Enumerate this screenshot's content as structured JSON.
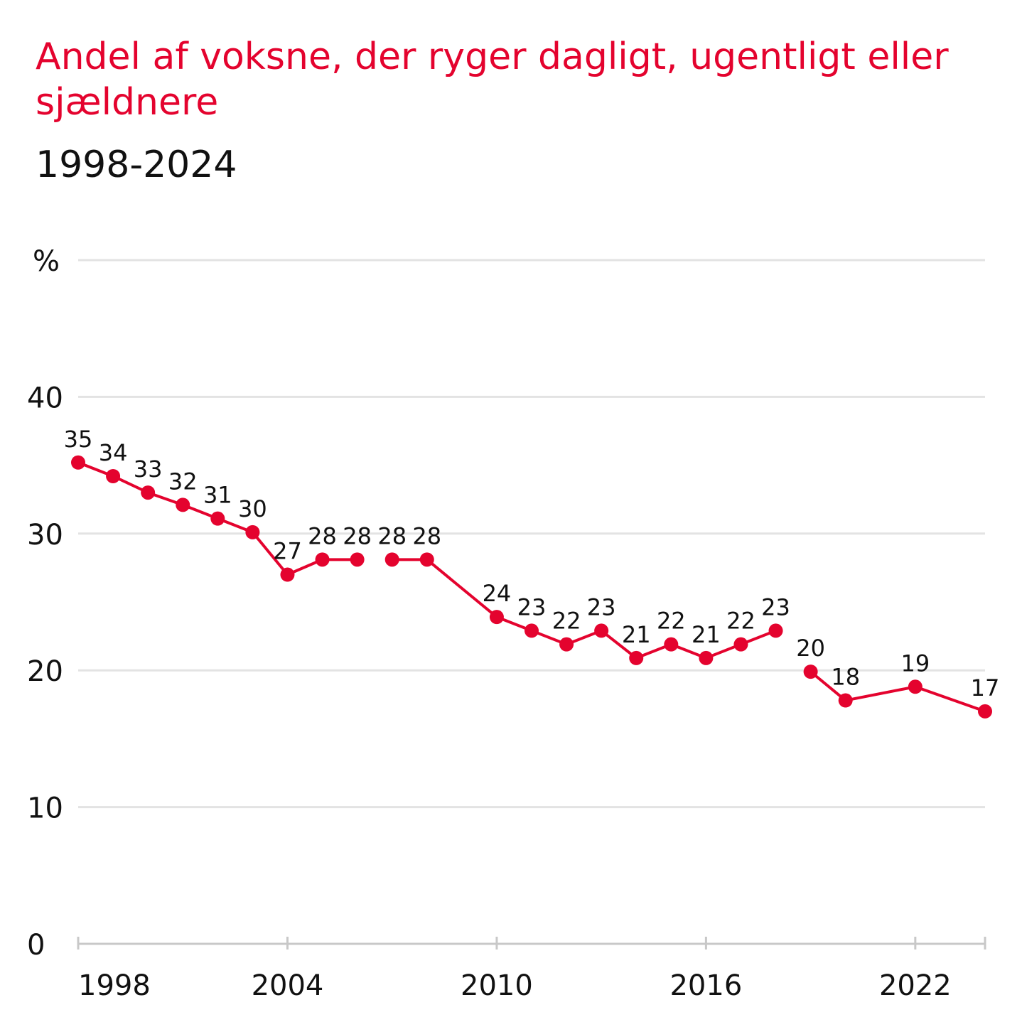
{
  "chart_data": {
    "type": "line",
    "title": "Andel af voksne, der ryger dagligt, ugentligt eller sjældnere",
    "subtitle": "1998-2024",
    "ylabel": "%",
    "ylim": [
      0,
      50
    ],
    "yticks": [
      0,
      10,
      20,
      30,
      40
    ],
    "xlim": [
      1998,
      2024
    ],
    "xticks": [
      1998,
      2004,
      2010,
      2016,
      2022
    ],
    "grid": true,
    "color": "#e4032e",
    "segments": [
      [
        {
          "x": 1998,
          "y": 35.2,
          "label": "35"
        },
        {
          "x": 1999,
          "y": 34.2,
          "label": "34"
        },
        {
          "x": 2000,
          "y": 33.0,
          "label": "33"
        },
        {
          "x": 2001,
          "y": 32.1,
          "label": "32"
        },
        {
          "x": 2002,
          "y": 31.1,
          "label": "31"
        },
        {
          "x": 2003,
          "y": 30.1,
          "label": "30"
        },
        {
          "x": 2004,
          "y": 27.0,
          "label": "27"
        },
        {
          "x": 2005,
          "y": 28.1,
          "label": "28"
        },
        {
          "x": 2006,
          "y": 28.1,
          "label": "28"
        }
      ],
      [
        {
          "x": 2007,
          "y": 28.1,
          "label": "28"
        },
        {
          "x": 2008,
          "y": 28.1,
          "label": "28"
        },
        {
          "x": 2010,
          "y": 23.9,
          "label": "24"
        },
        {
          "x": 2011,
          "y": 22.9,
          "label": "23"
        },
        {
          "x": 2012,
          "y": 21.9,
          "label": "22"
        },
        {
          "x": 2013,
          "y": 22.9,
          "label": "23"
        },
        {
          "x": 2014,
          "y": 20.9,
          "label": "21"
        },
        {
          "x": 2015,
          "y": 21.9,
          "label": "22"
        },
        {
          "x": 2016,
          "y": 20.9,
          "label": "21"
        },
        {
          "x": 2017,
          "y": 21.9,
          "label": "22"
        },
        {
          "x": 2018,
          "y": 22.9,
          "label": "23"
        }
      ],
      [
        {
          "x": 2019,
          "y": 19.9,
          "label": "20"
        },
        {
          "x": 2020,
          "y": 17.8,
          "label": "18"
        },
        {
          "x": 2022,
          "y": 18.8,
          "label": "19"
        },
        {
          "x": 2024,
          "y": 17.0,
          "label": "17"
        }
      ]
    ]
  }
}
